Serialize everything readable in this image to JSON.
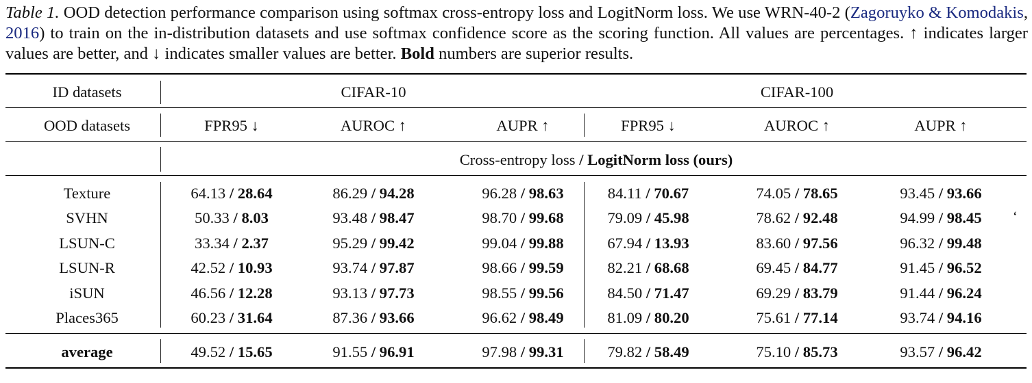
{
  "caption": {
    "label": "Table 1.",
    "text_1": " OOD detection performance comparison using softmax cross-entropy loss and LogitNorm loss. We use WRN-40-2 (",
    "cite_1": "Zagoruyko",
    "cite_2": "& Komodakis",
    "cite_sep": ", ",
    "cite_year": "2016",
    "text_2": ") to train on the in-distribution datasets and use softmax confidence score as the scoring function. All values are percentages. ↑ indicates larger values are better, and ↓ indicates smaller values are better. ",
    "bold_word": "Bold",
    "text_3": " numbers are superior results."
  },
  "table": {
    "id_label": "ID datasets",
    "ood_label": "OOD datasets",
    "groups": [
      "CIFAR-10",
      "CIFAR-100"
    ],
    "metrics": [
      "FPR95 ↓",
      "AUROC ↑",
      "AUPR ↑",
      "FPR95 ↓",
      "AUROC ↑",
      "AUPR ↑"
    ],
    "subheader_plain": "Cross-entropy loss",
    "subheader_sep": " / ",
    "subheader_bold": "LogitNorm loss (ours)",
    "rows": [
      {
        "name": "Texture",
        "vals": [
          [
            "64.13",
            "28.64"
          ],
          [
            "86.29",
            "94.28"
          ],
          [
            "96.28",
            "98.63"
          ],
          [
            "84.11",
            "70.67"
          ],
          [
            "74.05",
            "78.65"
          ],
          [
            "93.45",
            "93.66"
          ]
        ]
      },
      {
        "name": "SVHN",
        "vals": [
          [
            "50.33",
            "8.03"
          ],
          [
            "93.48",
            "98.47"
          ],
          [
            "98.70",
            "99.68"
          ],
          [
            "79.09",
            "45.98"
          ],
          [
            "78.62",
            "92.48"
          ],
          [
            "94.99",
            "98.45"
          ]
        ]
      },
      {
        "name": "LSUN-C",
        "vals": [
          [
            "33.34",
            "2.37"
          ],
          [
            "95.29",
            "99.42"
          ],
          [
            "99.04",
            "99.88"
          ],
          [
            "67.94",
            "13.93"
          ],
          [
            "83.60",
            "97.56"
          ],
          [
            "96.32",
            "99.48"
          ]
        ]
      },
      {
        "name": "LSUN-R",
        "vals": [
          [
            "42.52",
            "10.93"
          ],
          [
            "93.74",
            "97.87"
          ],
          [
            "98.66",
            "99.59"
          ],
          [
            "82.21",
            "68.68"
          ],
          [
            "69.45",
            "84.77"
          ],
          [
            "91.45",
            "96.52"
          ]
        ]
      },
      {
        "name": "iSUN",
        "vals": [
          [
            "46.56",
            "12.28"
          ],
          [
            "93.13",
            "97.73"
          ],
          [
            "98.55",
            "99.56"
          ],
          [
            "84.50",
            "71.47"
          ],
          [
            "69.29",
            "83.79"
          ],
          [
            "91.44",
            "96.24"
          ]
        ]
      },
      {
        "name": "Places365",
        "vals": [
          [
            "60.23",
            "31.64"
          ],
          [
            "87.36",
            "93.66"
          ],
          [
            "96.62",
            "98.49"
          ],
          [
            "81.09",
            "80.20"
          ],
          [
            "75.61",
            "77.14"
          ],
          [
            "93.74",
            "94.16"
          ]
        ]
      }
    ],
    "average": {
      "name": "average",
      "vals": [
        [
          "49.52",
          "15.65"
        ],
        [
          "91.55",
          "96.91"
        ],
        [
          "97.98",
          "99.31"
        ],
        [
          "79.82",
          "58.49"
        ],
        [
          "75.10",
          "85.73"
        ],
        [
          "93.57",
          "96.42"
        ]
      ]
    }
  },
  "stray_mark": "‘"
}
